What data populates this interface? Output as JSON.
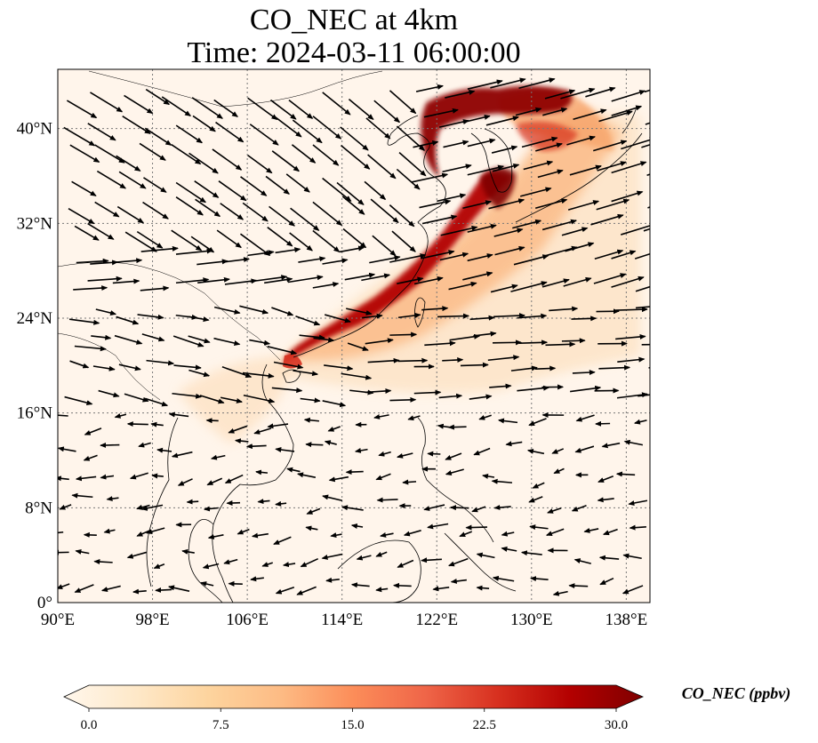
{
  "title": {
    "line1": "CO_NEC at 4km",
    "line2": "Time: 2024-03-11 06:00:00"
  },
  "map": {
    "lon_range": [
      90,
      140
    ],
    "lat_range": [
      0,
      45
    ],
    "lon_ticks": [
      {
        "value": 90,
        "label": "90°E"
      },
      {
        "value": 98,
        "label": "98°E"
      },
      {
        "value": 106,
        "label": "106°E"
      },
      {
        "value": 114,
        "label": "114°E"
      },
      {
        "value": 122,
        "label": "122°E"
      },
      {
        "value": 130,
        "label": "130°E"
      },
      {
        "value": 138,
        "label": "138°E"
      }
    ],
    "lat_ticks": [
      {
        "value": 0,
        "label": "0°"
      },
      {
        "value": 8,
        "label": "8°N"
      },
      {
        "value": 16,
        "label": "16°N"
      },
      {
        "value": 24,
        "label": "24°N"
      },
      {
        "value": 32,
        "label": "32°N"
      },
      {
        "value": 40,
        "label": "40°N"
      }
    ],
    "gridlines": true,
    "background_color": "#fff5eb"
  },
  "colorbar": {
    "label": "CO_NEC (ppbv)",
    "min": 0,
    "max": 30,
    "ticks": [
      "0.0",
      "7.5",
      "15.0",
      "22.5",
      "30.0"
    ],
    "colormap": "OrRd-like",
    "extend": "both",
    "colors": [
      "#fff7ec",
      "#fee8c8",
      "#fdd49e",
      "#fdbb84",
      "#fc8d59",
      "#ef6548",
      "#d7301f",
      "#b30000",
      "#7f0000"
    ]
  }
}
